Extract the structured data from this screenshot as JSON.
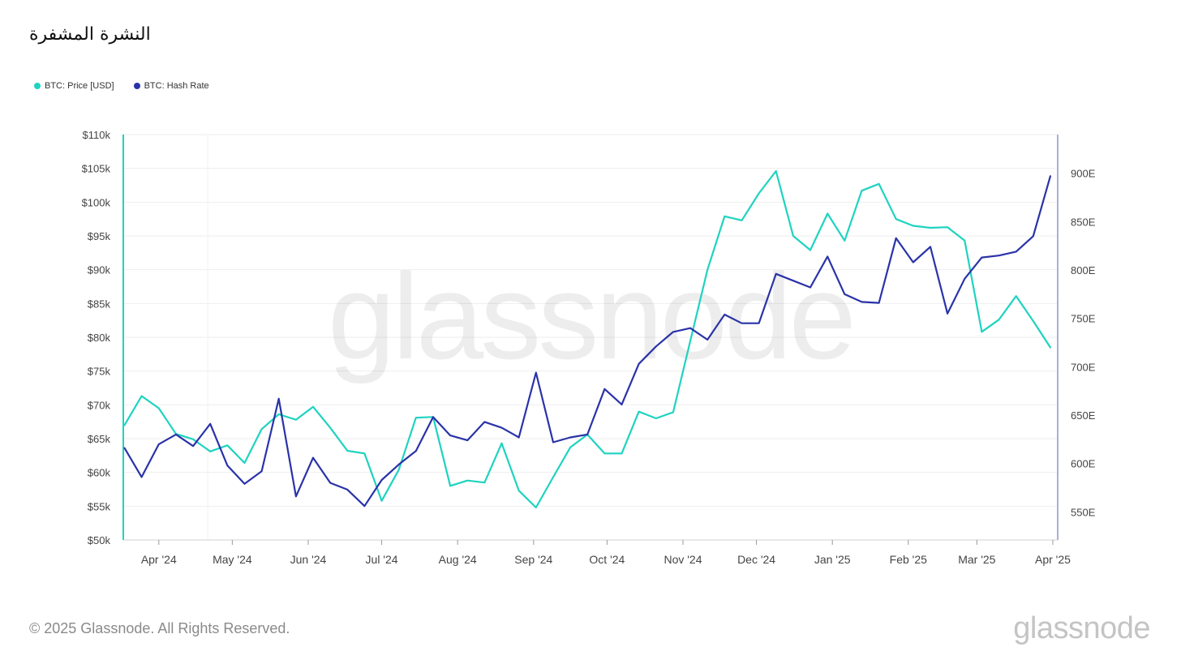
{
  "header": {
    "title": "النشرة المشفرة"
  },
  "legend": [
    {
      "label": "BTC: Price [USD]",
      "color": "#1ed3c0"
    },
    {
      "label": "BTC: Hash Rate",
      "color": "#2a33a8"
    }
  ],
  "footer": {
    "copyright": "© 2025 Glassnode. All Rights Reserved.",
    "brand": "glassnode"
  },
  "chart_data": {
    "type": "line",
    "watermark": "glassnode",
    "x_ticks": [
      "Apr '24",
      "May '24",
      "Jun '24",
      "Jul '24",
      "Aug '24",
      "Sep '24",
      "Oct '24",
      "Nov '24",
      "Dec '24",
      "Jan '25",
      "Feb '25",
      "Mar '25",
      "Apr '25"
    ],
    "y_left": {
      "ticks": [
        "$110k",
        "$105k",
        "$100k",
        "$95k",
        "$90k",
        "$85k",
        "$80k",
        "$75k",
        "$70k",
        "$65k",
        "$60k",
        "$55k",
        "$50k"
      ],
      "tick_values": [
        110000,
        105000,
        100000,
        95000,
        90000,
        85000,
        80000,
        75000,
        70000,
        65000,
        60000,
        55000,
        50000
      ],
      "range": [
        50000,
        110000
      ]
    },
    "y_right": {
      "ticks": [
        "900E",
        "850E",
        "800E",
        "750E",
        "700E",
        "650E",
        "600E",
        "550E"
      ],
      "tick_values": [
        900,
        850,
        800,
        750,
        700,
        650,
        600,
        550
      ],
      "range": [
        521,
        940
      ]
    },
    "grid": true,
    "legend_position": "top-left",
    "dates": [
      "2024-03-18",
      "2024-03-25",
      "2024-04-01",
      "2024-04-08",
      "2024-04-15",
      "2024-04-22",
      "2024-04-29",
      "2024-05-06",
      "2024-05-13",
      "2024-05-20",
      "2024-05-27",
      "2024-06-03",
      "2024-06-10",
      "2024-06-17",
      "2024-06-24",
      "2024-07-01",
      "2024-07-08",
      "2024-07-15",
      "2024-07-22",
      "2024-07-29",
      "2024-08-05",
      "2024-08-12",
      "2024-08-19",
      "2024-08-26",
      "2024-09-02",
      "2024-09-09",
      "2024-09-16",
      "2024-09-23",
      "2024-09-30",
      "2024-10-07",
      "2024-10-14",
      "2024-10-21",
      "2024-10-28",
      "2024-11-04",
      "2024-11-11",
      "2024-11-18",
      "2024-11-25",
      "2024-12-02",
      "2024-12-09",
      "2024-12-16",
      "2024-12-23",
      "2024-12-30",
      "2025-01-06",
      "2025-01-13",
      "2025-01-20",
      "2025-01-27",
      "2025-02-03",
      "2025-02-10",
      "2025-02-17",
      "2025-02-24",
      "2025-03-03",
      "2025-03-10",
      "2025-03-17",
      "2025-03-24",
      "2025-03-31"
    ],
    "series": [
      {
        "name": "BTC: Price [USD]",
        "axis": "left",
        "color": "#1ed3c0",
        "values": [
          67000,
          71300,
          69500,
          65700,
          64900,
          63100,
          64000,
          61400,
          66400,
          68600,
          67800,
          69700,
          66600,
          63200,
          62800,
          55800,
          60400,
          68100,
          68200,
          58000,
          58800,
          58500,
          64300,
          57300,
          54800,
          59300,
          63700,
          65600,
          62800,
          62800,
          69000,
          68000,
          68900,
          79500,
          90000,
          97900,
          97300,
          101300,
          104600,
          95000,
          92900,
          98300,
          94300,
          101700,
          102700,
          97500,
          96500,
          96200,
          96300,
          94300,
          80800,
          82600,
          86100,
          82400,
          78500
        ]
      },
      {
        "name": "BTC: Hash Rate",
        "axis": "right",
        "color": "#2a33a8",
        "values": [
          616,
          586,
          620,
          630,
          618,
          641,
          598,
          579,
          592,
          667,
          566,
          606,
          580,
          573,
          556,
          583,
          599,
          613,
          648,
          629,
          624,
          643,
          637,
          627,
          694,
          622,
          627,
          630,
          677,
          661,
          703,
          721,
          736,
          740,
          728,
          754,
          745,
          745,
          796,
          789,
          782,
          814,
          775,
          767,
          766,
          833,
          808,
          824,
          755,
          791,
          813,
          815,
          819,
          835,
          897
        ]
      }
    ]
  }
}
